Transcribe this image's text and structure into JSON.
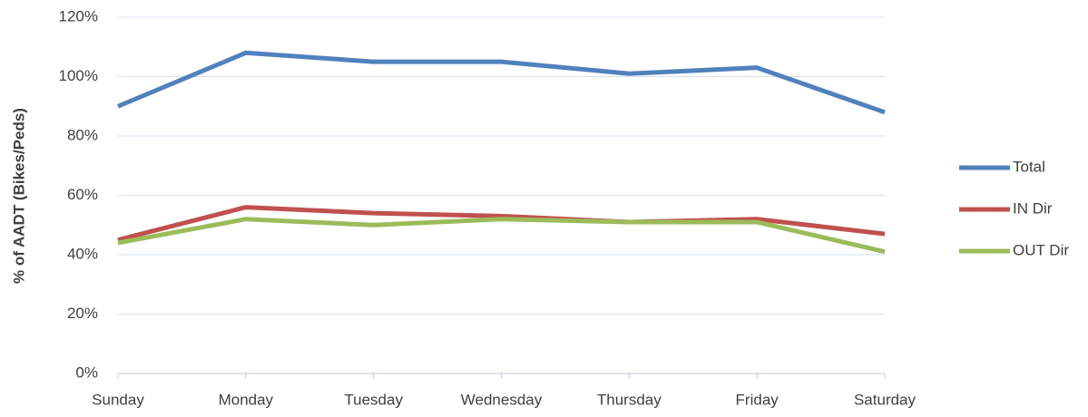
{
  "chart_data": {
    "type": "line",
    "y_axis_label": "% of AADT (Bikes/Peds)",
    "categories": [
      "Sunday",
      "Monday",
      "Tuesday",
      "Wednesday",
      "Thursday",
      "Friday",
      "Saturday"
    ],
    "series": [
      {
        "name": "Total",
        "color": "#4f81bd",
        "values": [
          90,
          108,
          105,
          105,
          101,
          103,
          88
        ]
      },
      {
        "name": "IN Dir",
        "color": "#c0504d",
        "values": [
          45,
          56,
          54,
          53,
          51,
          52,
          47
        ]
      },
      {
        "name": "OUT Dir",
        "color": "#9bbb59",
        "values": [
          44,
          52,
          50,
          52,
          51,
          51,
          41
        ]
      }
    ],
    "ylim": [
      0,
      120
    ],
    "yticks": [
      {
        "value": 0,
        "label": "0%"
      },
      {
        "value": 20,
        "label": "20%"
      },
      {
        "value": 40,
        "label": "40%"
      },
      {
        "value": 60,
        "label": "60%"
      },
      {
        "value": 80,
        "label": "80%"
      },
      {
        "value": 100,
        "label": "100%"
      },
      {
        "value": 120,
        "label": "120%"
      }
    ],
    "grid": true,
    "legend": "right"
  }
}
